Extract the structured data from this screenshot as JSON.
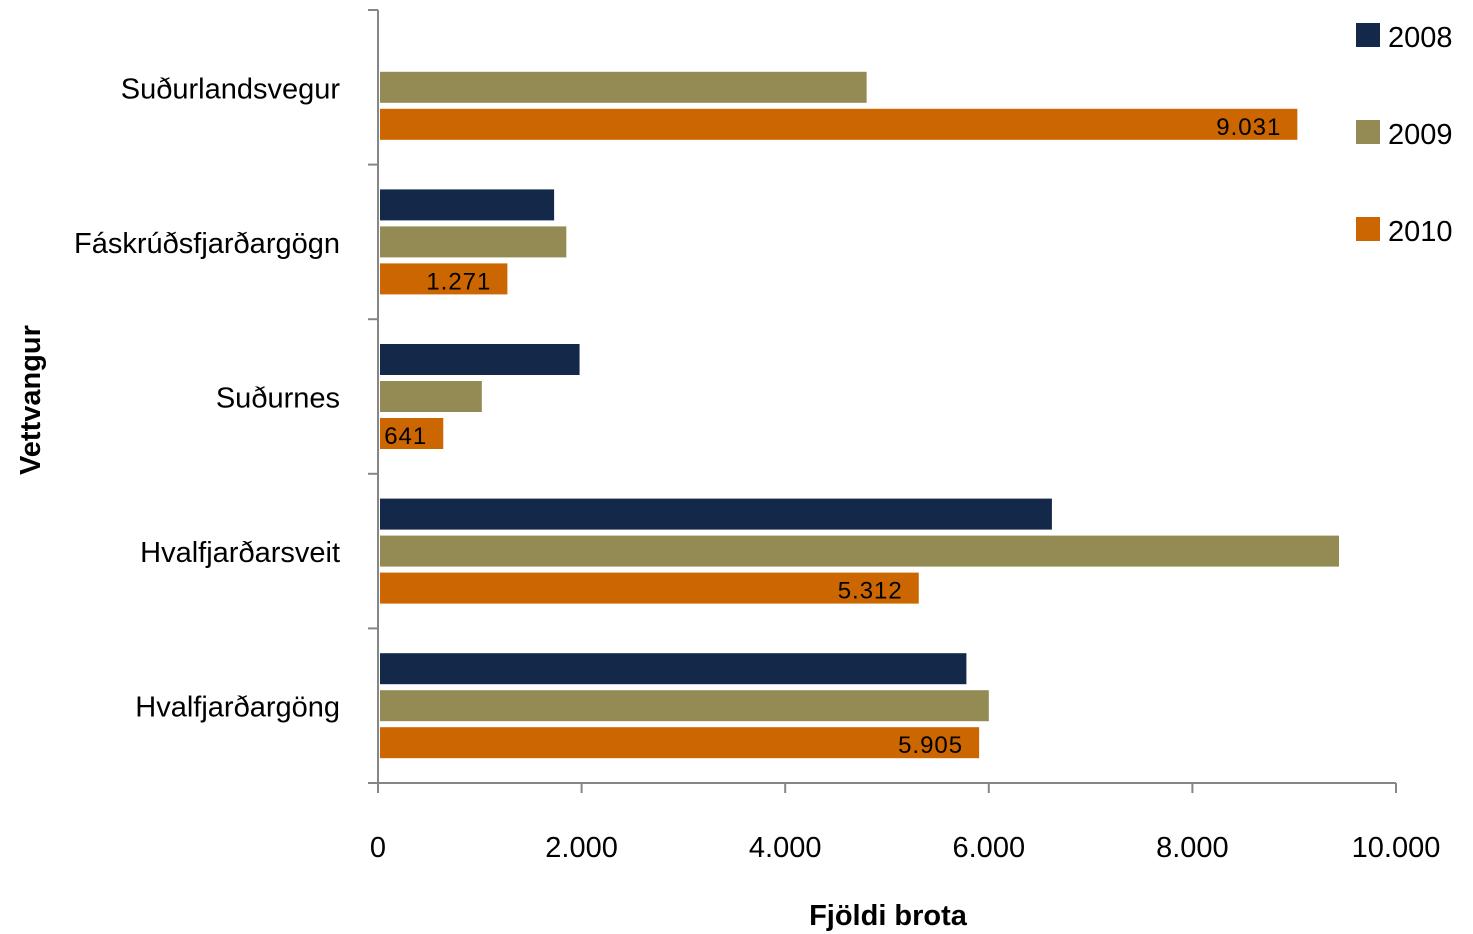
{
  "chart_data": {
    "type": "bar",
    "orientation": "horizontal",
    "categories": [
      "Hvalfjarðargöng",
      "Hvalfjarðarsveit",
      "Suðurnes",
      "Fáskrúðsfjarðargögn",
      "Suðurlandsvegur"
    ],
    "series": [
      {
        "name": "2008",
        "values": [
          5780,
          6620,
          1980,
          1730,
          null
        ],
        "color": "#14284a"
      },
      {
        "name": "2009",
        "values": [
          6000,
          9440,
          1020,
          1850,
          4800
        ],
        "color": "#948a54"
      },
      {
        "name": "2010",
        "values": [
          5905,
          5312,
          641,
          1271,
          9031
        ],
        "color": "#cc6600"
      }
    ],
    "data_labels": {
      "series": "2010",
      "values": [
        "5.905",
        "5.312",
        "641",
        "1.271",
        "9.031"
      ]
    },
    "x_ticks": [
      "0",
      "2.000",
      "4.000",
      "6.000",
      "8.000",
      "10.000"
    ],
    "xlim": [
      0,
      10000
    ],
    "xlabel": "Fjöldi brota",
    "ylabel": "Vettvangur",
    "legend_position": "top-right",
    "grid": false
  }
}
